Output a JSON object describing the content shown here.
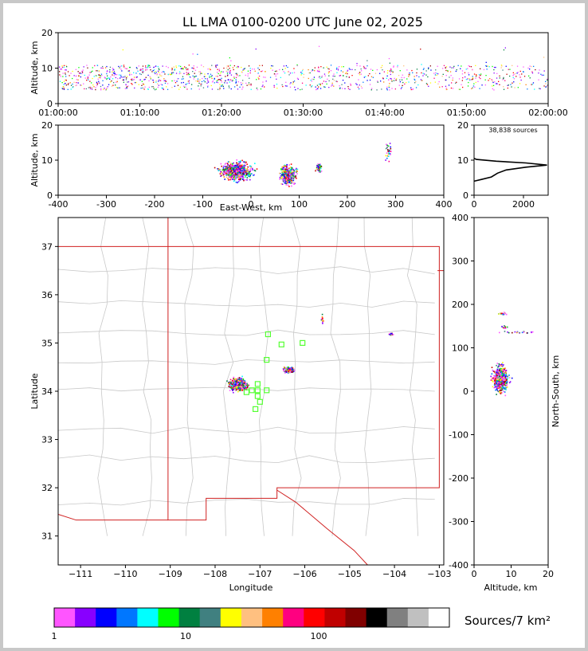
{
  "title": "LL LMA 0100-0200 UTC June 02, 2025",
  "colorbar": {
    "label": "Sources/7 km²",
    "tick_labels": [
      "1",
      "10",
      "100"
    ],
    "colors": [
      "#ff55ff",
      "#8800ff",
      "#0000ff",
      "#0077ff",
      "#00ffff",
      "#00ff00",
      "#008040",
      "#408080",
      "#ffff00",
      "#ffc080",
      "#ff8000",
      "#ff0080",
      "#ff0000",
      "#c00000",
      "#800000",
      "#000000",
      "#808080",
      "#c0c0c0",
      "#ffffff"
    ]
  },
  "chart_data": [
    {
      "type": "scatter",
      "panel": "time-altitude",
      "ylabel": "Altitude, km",
      "xlabel": "",
      "ylim": [
        0,
        20
      ],
      "y_ticks": [
        "0",
        "10",
        "20"
      ],
      "x_ticks": [
        "01:00:00",
        "01:10:00",
        "01:20:00",
        "01:30:00",
        "01:40:00",
        "01:50:00",
        "02:00:00"
      ],
      "source_band_km": [
        4,
        11
      ]
    },
    {
      "type": "scatter",
      "panel": "east-west-altitude",
      "xlabel": "East-West, km",
      "ylabel": "Altitude, km",
      "xlim": [
        -400,
        400
      ],
      "ylim": [
        0,
        20
      ],
      "x_ticks": [
        "-400",
        "-300",
        "-200",
        "-100",
        "0",
        "100",
        "200",
        "300",
        "400"
      ],
      "y_ticks": [
        "0",
        "10",
        "20"
      ],
      "clusters": [
        {
          "x": -30,
          "alt": 7
        },
        {
          "x": 75,
          "alt": 6
        },
        {
          "x": 140,
          "alt": 8
        },
        {
          "x": 285,
          "alt": 13
        }
      ]
    },
    {
      "type": "line",
      "panel": "altitude-histogram",
      "annotation": "38,838 sources",
      "xlim": [
        0,
        3000
      ],
      "ylim": [
        0,
        20
      ],
      "x_ticks": [
        "0",
        "2000"
      ],
      "y_ticks": [
        "0",
        "10",
        "20"
      ],
      "profile": [
        [
          0,
          4
        ],
        [
          300,
          4.5
        ],
        [
          700,
          5.2
        ],
        [
          950,
          6.3
        ],
        [
          1300,
          7.2
        ],
        [
          2100,
          8.0
        ],
        [
          2950,
          8.6
        ],
        [
          2100,
          9.2
        ],
        [
          900,
          9.7
        ],
        [
          100,
          10.2
        ],
        [
          0,
          10.5
        ]
      ]
    },
    {
      "type": "scatter",
      "panel": "plan-view",
      "xlabel": "Longitude",
      "ylabel": "Latitude",
      "xlim": [
        -111.5,
        -102.9
      ],
      "ylim": [
        30.4,
        37.6
      ],
      "x_ticks": [
        "−111",
        "−110",
        "−109",
        "−108",
        "−107",
        "−106",
        "−105",
        "−104",
        "−103"
      ],
      "y_ticks": [
        "31",
        "32",
        "33",
        "34",
        "35",
        "36",
        "37"
      ],
      "clusters": [
        {
          "lon": -107.5,
          "lat": 34.15
        },
        {
          "lon": -106.35,
          "lat": 34.45
        },
        {
          "lon": -105.62,
          "lat": 35.5
        },
        {
          "lon": -104.1,
          "lat": 35.2
        }
      ],
      "stations": [
        {
          "lon": -106.82,
          "lat": 35.18
        },
        {
          "lon": -106.52,
          "lat": 34.97
        },
        {
          "lon": -106.05,
          "lat": 35.0
        },
        {
          "lon": -106.85,
          "lat": 34.65
        },
        {
          "lon": -107.05,
          "lat": 34.15
        },
        {
          "lon": -107.05,
          "lat": 34.02
        },
        {
          "lon": -106.85,
          "lat": 34.02
        },
        {
          "lon": -107.3,
          "lat": 33.98
        },
        {
          "lon": -107.18,
          "lat": 34.02
        },
        {
          "lon": -107.05,
          "lat": 33.9
        },
        {
          "lon": -107.0,
          "lat": 33.78
        },
        {
          "lon": -107.1,
          "lat": 33.63
        }
      ]
    },
    {
      "type": "scatter",
      "panel": "altitude-north-south",
      "xlabel": "Altitude, km",
      "ylabel": "North-South, km",
      "xlim": [
        0,
        20
      ],
      "ylim": [
        -400,
        400
      ],
      "x_ticks": [
        "0",
        "10",
        "20"
      ],
      "y_ticks": [
        "-400",
        "-300",
        "-200",
        "-100",
        "0",
        "100",
        "200",
        "300",
        "400"
      ],
      "clusters": [
        {
          "alt": 7,
          "y": 30
        },
        {
          "alt": 8,
          "y": 180
        },
        {
          "alt": 8,
          "y": 150
        },
        {
          "alt": 12,
          "y": 137
        }
      ]
    }
  ]
}
